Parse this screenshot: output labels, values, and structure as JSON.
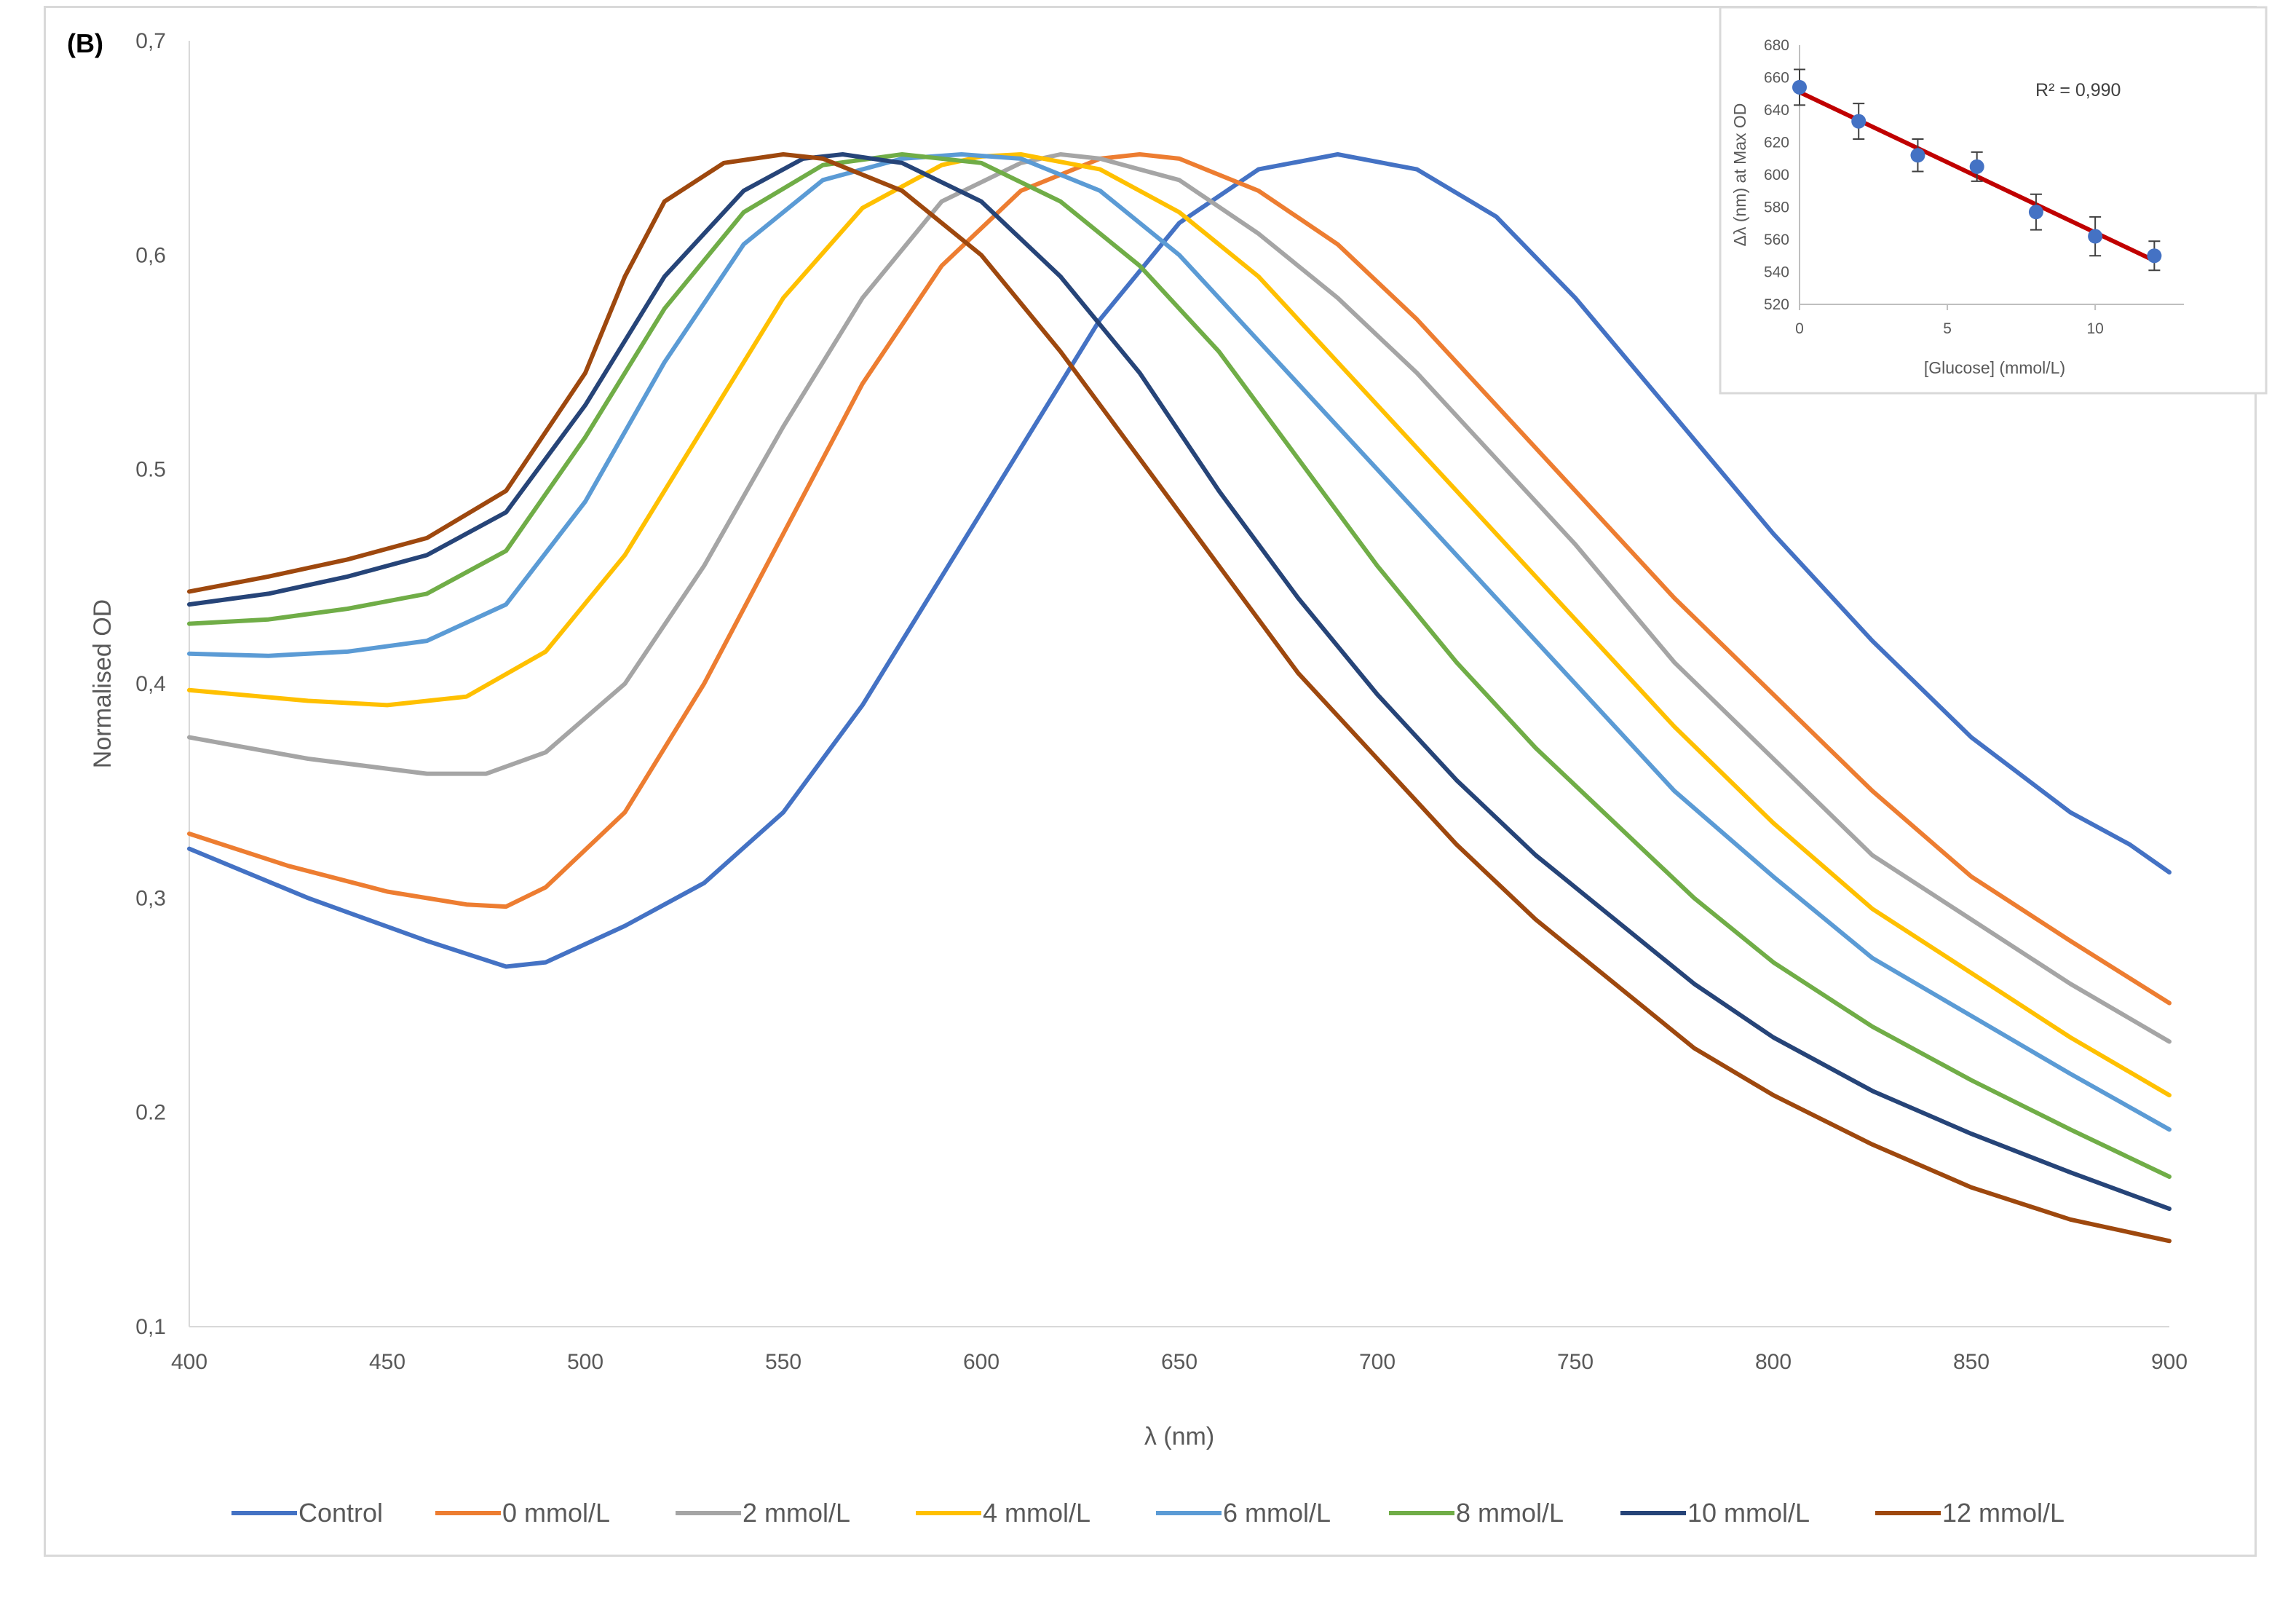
{
  "panel_label": "(B)",
  "colors": {
    "Control": "#4472c4",
    "0 mmol/L": "#ed7d31",
    "2 mmol/L": "#a5a5a5",
    "4 mmol/L": "#ffc000",
    "6 mmol/L": "#5b9bd5",
    "8 mmol/L": "#70ad47",
    "10 mmol/L": "#264478",
    "12 mmol/L": "#9e480e",
    "fit_line": "#c00000",
    "inset_points": "#4472c4"
  },
  "chart_data": [
    {
      "type": "line",
      "title": "",
      "xlabel": "λ (nm)",
      "ylabel": "Normalised OD",
      "xlim": [
        400,
        900
      ],
      "ylim": [
        0.1,
        0.7
      ],
      "x_ticks": [
        "400",
        "450",
        "500",
        "550",
        "600",
        "650",
        "700",
        "750",
        "800",
        "850",
        "900"
      ],
      "y_ticks": [
        "0,1",
        "0.2",
        "0,3",
        "0,4",
        "0.5",
        "0,6",
        "0,7"
      ],
      "legend_position": "bottom",
      "series": [
        {
          "name": "Control",
          "x": [
            400,
            430,
            460,
            480,
            490,
            510,
            530,
            550,
            570,
            590,
            610,
            630,
            650,
            670,
            690,
            710,
            730,
            750,
            775,
            800,
            825,
            850,
            875,
            890,
            900
          ],
          "y": [
            0.323,
            0.3,
            0.28,
            0.268,
            0.27,
            0.287,
            0.307,
            0.34,
            0.39,
            0.45,
            0.51,
            0.57,
            0.615,
            0.64,
            0.647,
            0.64,
            0.618,
            0.58,
            0.525,
            0.47,
            0.42,
            0.375,
            0.34,
            0.325,
            0.312
          ]
        },
        {
          "name": "0 mmol/L",
          "x": [
            400,
            425,
            450,
            470,
            480,
            490,
            510,
            530,
            550,
            570,
            590,
            610,
            630,
            640,
            650,
            670,
            690,
            710,
            730,
            750,
            775,
            800,
            825,
            850,
            875,
            900
          ],
          "y": [
            0.33,
            0.315,
            0.303,
            0.297,
            0.296,
            0.305,
            0.34,
            0.4,
            0.47,
            0.54,
            0.595,
            0.63,
            0.645,
            0.647,
            0.645,
            0.63,
            0.605,
            0.57,
            0.53,
            0.49,
            0.44,
            0.395,
            0.35,
            0.31,
            0.28,
            0.251
          ]
        },
        {
          "name": "2 mmol/L",
          "x": [
            400,
            430,
            460,
            475,
            490,
            510,
            530,
            550,
            570,
            590,
            610,
            620,
            630,
            650,
            670,
            690,
            710,
            730,
            750,
            775,
            800,
            825,
            850,
            875,
            900
          ],
          "y": [
            0.375,
            0.365,
            0.358,
            0.358,
            0.368,
            0.4,
            0.455,
            0.52,
            0.58,
            0.625,
            0.643,
            0.647,
            0.645,
            0.635,
            0.61,
            0.58,
            0.545,
            0.505,
            0.465,
            0.41,
            0.365,
            0.32,
            0.29,
            0.26,
            0.233
          ]
        },
        {
          "name": "4 mmol/L",
          "x": [
            400,
            430,
            450,
            470,
            490,
            510,
            530,
            550,
            570,
            590,
            600,
            610,
            630,
            650,
            670,
            690,
            710,
            730,
            750,
            775,
            800,
            825,
            850,
            875,
            900
          ],
          "y": [
            0.397,
            0.392,
            0.39,
            0.394,
            0.415,
            0.46,
            0.52,
            0.58,
            0.622,
            0.642,
            0.646,
            0.647,
            0.64,
            0.62,
            0.59,
            0.55,
            0.51,
            0.47,
            0.43,
            0.38,
            0.335,
            0.295,
            0.265,
            0.235,
            0.208
          ]
        },
        {
          "name": "6 mmol/L",
          "x": [
            400,
            420,
            440,
            460,
            480,
            500,
            520,
            540,
            560,
            580,
            595,
            610,
            630,
            650,
            670,
            690,
            710,
            730,
            750,
            775,
            800,
            825,
            850,
            875,
            900
          ],
          "y": [
            0.414,
            0.413,
            0.415,
            0.42,
            0.437,
            0.485,
            0.55,
            0.605,
            0.635,
            0.645,
            0.647,
            0.645,
            0.63,
            0.6,
            0.56,
            0.52,
            0.48,
            0.44,
            0.4,
            0.35,
            0.31,
            0.272,
            0.245,
            0.218,
            0.192
          ]
        },
        {
          "name": "8 mmol/L",
          "x": [
            400,
            420,
            440,
            460,
            480,
            500,
            520,
            540,
            560,
            580,
            600,
            620,
            640,
            660,
            680,
            700,
            720,
            740,
            760,
            780,
            800,
            825,
            850,
            875,
            900
          ],
          "y": [
            0.428,
            0.43,
            0.435,
            0.442,
            0.462,
            0.515,
            0.575,
            0.62,
            0.642,
            0.647,
            0.643,
            0.625,
            0.595,
            0.555,
            0.505,
            0.455,
            0.41,
            0.37,
            0.335,
            0.3,
            0.27,
            0.24,
            0.215,
            0.192,
            0.17
          ]
        },
        {
          "name": "10 mmol/L",
          "x": [
            400,
            420,
            440,
            460,
            480,
            500,
            520,
            540,
            555,
            565,
            580,
            600,
            620,
            640,
            660,
            680,
            700,
            720,
            740,
            760,
            780,
            800,
            825,
            850,
            875,
            900
          ],
          "y": [
            0.437,
            0.442,
            0.45,
            0.46,
            0.48,
            0.53,
            0.59,
            0.63,
            0.645,
            0.647,
            0.643,
            0.625,
            0.59,
            0.545,
            0.49,
            0.44,
            0.395,
            0.355,
            0.32,
            0.29,
            0.26,
            0.235,
            0.21,
            0.19,
            0.172,
            0.155
          ]
        },
        {
          "name": "12 mmol/L",
          "x": [
            400,
            420,
            440,
            460,
            480,
            500,
            510,
            520,
            535,
            550,
            560,
            580,
            600,
            620,
            640,
            660,
            680,
            700,
            720,
            740,
            760,
            780,
            800,
            825,
            850,
            875,
            900
          ],
          "y": [
            0.443,
            0.45,
            0.458,
            0.468,
            0.49,
            0.545,
            0.59,
            0.625,
            0.643,
            0.647,
            0.645,
            0.63,
            0.6,
            0.555,
            0.505,
            0.455,
            0.405,
            0.365,
            0.325,
            0.29,
            0.26,
            0.23,
            0.208,
            0.185,
            0.165,
            0.15,
            0.14
          ]
        }
      ]
    },
    {
      "type": "scatter",
      "title": "",
      "xlabel": "[Glucose] (mmol/L)",
      "ylabel": "Δλ (nm) at Max OD",
      "xlim": [
        0,
        13
      ],
      "ylim": [
        520,
        680
      ],
      "x_ticks": [
        "0",
        "5",
        "10"
      ],
      "y_ticks": [
        "520",
        "540",
        "560",
        "580",
        "600",
        "620",
        "640",
        "660",
        "680"
      ],
      "annotation": "R² = 0,990",
      "points": {
        "x": [
          0,
          2,
          4,
          6,
          8,
          10,
          12
        ],
        "y": [
          654,
          633,
          612,
          605,
          577,
          562,
          550
        ],
        "error": [
          11,
          11,
          10,
          9,
          11,
          12,
          9
        ]
      },
      "fit": {
        "x": [
          0,
          12
        ],
        "y": [
          651,
          547
        ]
      }
    }
  ]
}
